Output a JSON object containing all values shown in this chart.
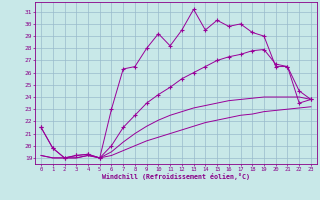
{
  "bg_color": "#c8e8e8",
  "grid_color": "#99bbcc",
  "line_color": "#990099",
  "line1_x": [
    0,
    1,
    2,
    3,
    4,
    5,
    6,
    7,
    8,
    9,
    10,
    11,
    12,
    13,
    14,
    15,
    16,
    17,
    18,
    19,
    20,
    21,
    22,
    23
  ],
  "line1_y": [
    21.5,
    19.8,
    19.0,
    19.2,
    19.3,
    19.0,
    23.0,
    26.3,
    26.5,
    28.0,
    29.2,
    28.2,
    29.5,
    31.2,
    29.5,
    30.3,
    29.8,
    30.0,
    29.3,
    29.0,
    26.5,
    26.5,
    23.5,
    23.8
  ],
  "line2_x": [
    0,
    1,
    2,
    3,
    4,
    5,
    6,
    7,
    8,
    9,
    10,
    11,
    12,
    13,
    14,
    15,
    16,
    17,
    18,
    19,
    20,
    21,
    22,
    23
  ],
  "line2_y": [
    21.5,
    19.8,
    19.0,
    19.2,
    19.3,
    19.0,
    20.0,
    21.5,
    22.5,
    23.5,
    24.2,
    24.8,
    25.5,
    26.0,
    26.5,
    27.0,
    27.3,
    27.5,
    27.8,
    27.9,
    26.7,
    26.5,
    24.5,
    23.8
  ],
  "line3_x": [
    0,
    1,
    2,
    3,
    4,
    5,
    6,
    7,
    8,
    9,
    10,
    11,
    12,
    13,
    14,
    15,
    16,
    17,
    18,
    19,
    20,
    21,
    22,
    23
  ],
  "line3_y": [
    19.2,
    19.0,
    19.0,
    19.0,
    19.2,
    19.0,
    19.5,
    20.3,
    21.0,
    21.6,
    22.1,
    22.5,
    22.8,
    23.1,
    23.3,
    23.5,
    23.7,
    23.8,
    23.9,
    24.0,
    24.0,
    24.0,
    24.0,
    23.8
  ],
  "line4_x": [
    0,
    1,
    2,
    3,
    4,
    5,
    6,
    7,
    8,
    9,
    10,
    11,
    12,
    13,
    14,
    15,
    16,
    17,
    18,
    19,
    20,
    21,
    22,
    23
  ],
  "line4_y": [
    19.2,
    19.0,
    19.0,
    19.0,
    19.2,
    19.0,
    19.2,
    19.6,
    20.0,
    20.4,
    20.7,
    21.0,
    21.3,
    21.6,
    21.9,
    22.1,
    22.3,
    22.5,
    22.6,
    22.8,
    22.9,
    23.0,
    23.1,
    23.2
  ],
  "xlabel": "Windchill (Refroidissement éolien,°C)",
  "ylim": [
    18.5,
    31.8
  ],
  "xlim": [
    -0.5,
    23.5
  ],
  "yticks": [
    19,
    20,
    21,
    22,
    23,
    24,
    25,
    26,
    27,
    28,
    29,
    30,
    31
  ],
  "xticks": [
    0,
    1,
    2,
    3,
    4,
    5,
    6,
    7,
    8,
    9,
    10,
    11,
    12,
    13,
    14,
    15,
    16,
    17,
    18,
    19,
    20,
    21,
    22,
    23
  ]
}
